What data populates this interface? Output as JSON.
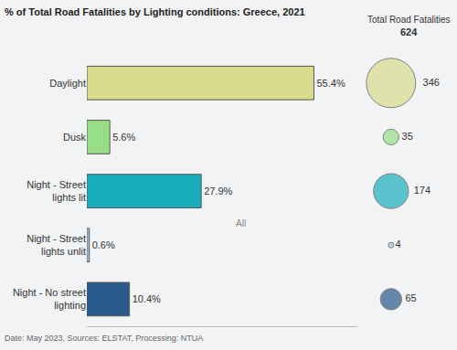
{
  "chart_data": [
    {
      "type": "bar",
      "title": "% of Total Road Fatalities by Lighting conditions: Greece, 2021",
      "orientation": "horizontal",
      "categories": [
        "Daylight",
        "Dusk",
        "Night - Street lights lit",
        "Night - Street lights unlit",
        "Night - No street lighting"
      ],
      "values": [
        55.4,
        5.6,
        27.9,
        0.6,
        10.4
      ],
      "value_labels": [
        "55.4%",
        "5.6%",
        "27.9%",
        "0.6%",
        "10.4%"
      ],
      "colors": [
        "#d7db8b",
        "#98de86",
        "#1aaebd",
        "#a6c4de",
        "#2a5a8c"
      ],
      "xlim": [
        0,
        66
      ],
      "xticks": [],
      "tick_labels": "y",
      "grid": false,
      "data_labels": true,
      "annotations": [
        "All"
      ],
      "caption": "Date: May 2023, Sources: ELSTAT, Processing: NTUA"
    },
    {
      "type": "scatter",
      "marker": "circle",
      "title": "Total Road Fatalities",
      "subtitle": "624",
      "categories": [
        "Daylight",
        "Dusk",
        "Night - Street lights lit",
        "Night - Street lights unlit",
        "Night - No street lighting"
      ],
      "values": [
        346,
        35,
        174,
        4,
        65
      ],
      "colors": [
        "#d7db8b",
        "#98de86",
        "#1aaebd",
        "#a6c4de",
        "#2a5a8c"
      ],
      "tick_labels": false,
      "data_labels": true
    }
  ]
}
